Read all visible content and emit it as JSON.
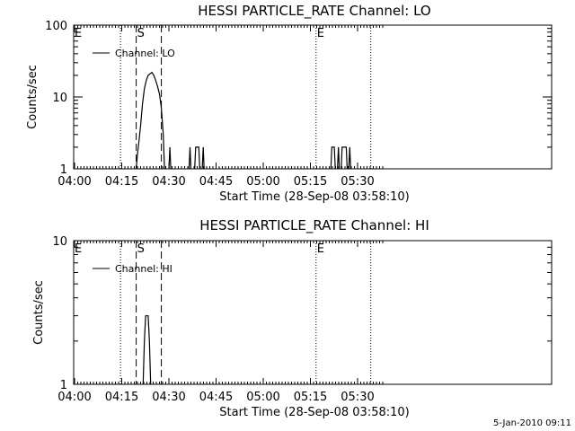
{
  "footer": {
    "date_stamp": "5-Jan-2010 09:11"
  },
  "chart_data": [
    {
      "type": "line",
      "title": "HESSI PARTICLE_RATE Channel: LO",
      "xlabel": "Start Time (28-Sep-08 03:58:10)",
      "ylabel": "Counts/sec",
      "yscale": "log",
      "ylim": [
        1,
        100
      ],
      "y_tick_labels": [
        "1",
        "10",
        "100"
      ],
      "x_tick_labels": [
        "04:00",
        "04:15",
        "04:30",
        "04:45",
        "05:00",
        "05:15",
        "05:30"
      ],
      "legend": {
        "label": "Channel: LO",
        "position": "upper-left"
      },
      "markers": [
        {
          "label": "E",
          "style": "dotted",
          "time": "04:14.6"
        },
        {
          "label": "S",
          "style": "dashed",
          "time": "04:19.6"
        },
        {
          "label": "",
          "style": "dashed",
          "time": "04:27.6"
        },
        {
          "label": "E",
          "style": "dotted",
          "time": "05:16.8"
        },
        {
          "label": "",
          "style": "dotted",
          "time": "05:34.2"
        }
      ],
      "series": [
        {
          "name": "Channel: LO",
          "segments": [
            [
              [
                "04:19.6",
                1
              ],
              [
                "04:20.0",
                1.6
              ],
              [
                "04:20.5",
                2.5
              ],
              [
                "04:21.0",
                4
              ],
              [
                "04:21.6",
                8
              ],
              [
                "04:22.2",
                13
              ],
              [
                "04:22.8",
                17
              ],
              [
                "04:23.4",
                20
              ],
              [
                "04:24.0",
                21
              ],
              [
                "04:24.6",
                22
              ],
              [
                "04:25.2",
                20
              ],
              [
                "04:25.8",
                17
              ],
              [
                "04:26.4",
                14
              ],
              [
                "04:27.0",
                11
              ],
              [
                "04:27.6",
                7
              ],
              [
                "04:28.2",
                3
              ],
              [
                "04:28.6",
                1
              ]
            ],
            [
              [
                "04:30.0",
                1
              ],
              [
                "04:30.3",
                2
              ],
              [
                "04:30.6",
                1
              ]
            ],
            [
              [
                "04:36.4",
                1
              ],
              [
                "04:36.7",
                2
              ],
              [
                "04:37.0",
                1
              ]
            ],
            [
              [
                "04:38.2",
                1
              ],
              [
                "04:38.5",
                2
              ],
              [
                "04:39.5",
                2
              ],
              [
                "04:39.8",
                1
              ]
            ],
            [
              [
                "04:40.6",
                1
              ],
              [
                "04:40.9",
                2
              ],
              [
                "04:41.2",
                1
              ]
            ],
            [
              [
                "05:21.5",
                1
              ],
              [
                "05:21.8",
                2
              ],
              [
                "05:22.6",
                2
              ],
              [
                "05:22.9",
                1
              ]
            ],
            [
              [
                "05:23.6",
                1
              ],
              [
                "05:23.9",
                2
              ],
              [
                "05:24.2",
                1
              ]
            ],
            [
              [
                "05:24.8",
                1
              ],
              [
                "05:25.1",
                2
              ],
              [
                "05:26.4",
                2
              ],
              [
                "05:26.7",
                1
              ]
            ],
            [
              [
                "05:27.2",
                1
              ],
              [
                "05:27.5",
                2
              ],
              [
                "05:27.8",
                1
              ]
            ]
          ]
        }
      ]
    },
    {
      "type": "line",
      "title": "HESSI PARTICLE_RATE Channel: HI",
      "xlabel": "Start Time (28-Sep-08 03:58:10)",
      "ylabel": "Counts/sec",
      "yscale": "log",
      "ylim": [
        1,
        10
      ],
      "y_tick_labels": [
        "1",
        "10"
      ],
      "x_tick_labels": [
        "04:00",
        "04:15",
        "04:30",
        "04:45",
        "05:00",
        "05:15",
        "05:30"
      ],
      "legend": {
        "label": "Channel: HI",
        "position": "upper-left"
      },
      "markers": [
        {
          "label": "E",
          "style": "dotted",
          "time": "04:14.6"
        },
        {
          "label": "S",
          "style": "dashed",
          "time": "04:19.6"
        },
        {
          "label": "",
          "style": "dashed",
          "time": "04:27.6"
        },
        {
          "label": "E",
          "style": "dotted",
          "time": "05:16.8"
        },
        {
          "label": "",
          "style": "dotted",
          "time": "05:34.2"
        }
      ],
      "series": [
        {
          "name": "Channel: HI",
          "segments": [
            [
              [
                "04:21.8",
                1
              ],
              [
                "04:22.2",
                2
              ],
              [
                "04:22.6",
                3
              ],
              [
                "04:23.4",
                3
              ],
              [
                "04:23.8",
                2
              ],
              [
                "04:24.2",
                1
              ]
            ]
          ]
        }
      ]
    }
  ]
}
